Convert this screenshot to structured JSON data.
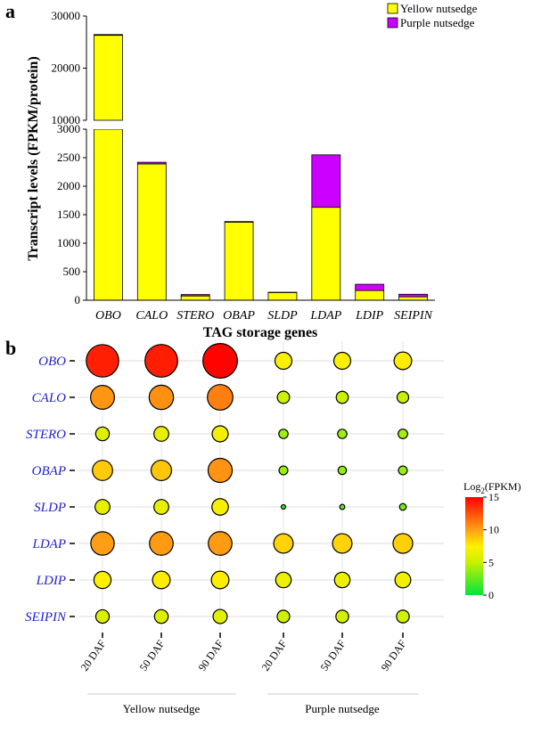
{
  "chart_data": [
    {
      "type": "bar",
      "stacked": true,
      "panel_label": "a",
      "categories": [
        "OBO",
        "CALO",
        "STERO",
        "OBAP",
        "SLDP",
        "LDAP",
        "LDIP",
        "SEIPIN"
      ],
      "series": [
        {
          "name": "Yellow nutsedge",
          "color": "#ffff00",
          "values": [
            26300,
            2390,
            75,
            1370,
            135,
            1630,
            170,
            60
          ]
        },
        {
          "name": "Purple nutsedge",
          "color": "#cc00ff",
          "values": [
            150,
            30,
            25,
            10,
            5,
            920,
            110,
            45
          ]
        }
      ],
      "xlabel": "TAG storage genes",
      "ylabel": "Transcript levels (FPKM/protein)",
      "axis_break": {
        "lower": [
          0,
          3000
        ],
        "upper": [
          10000,
          30000
        ]
      },
      "yticks_lower": [
        "0",
        "500",
        "1000",
        "1500",
        "2000",
        "2500",
        "3000"
      ],
      "yticks_upper": [
        "10000",
        "20000",
        "30000"
      ],
      "legend_position": "top-right"
    },
    {
      "type": "scatter",
      "subtype": "bubble",
      "panel_label": "b",
      "genes": [
        "OBO",
        "CALO",
        "STERO",
        "OBAP",
        "SLDP",
        "LDAP",
        "LDIP",
        "SEIPIN"
      ],
      "x": [
        "20 DAF",
        "50 DAF",
        "90 DAF",
        "20 DAF",
        "50 DAF",
        "90 DAF"
      ],
      "groups": [
        "Yellow nutsedge",
        "Purple nutsedge"
      ],
      "log2_fpkm": [
        [
          14.0,
          14.1,
          14.9,
          7.3,
          7.3,
          7.6
        ],
        [
          10.3,
          10.5,
          11.0,
          5.3,
          5.2,
          5.0
        ],
        [
          5.9,
          6.4,
          6.9,
          4.0,
          4.0,
          4.1
        ],
        [
          8.7,
          8.8,
          10.4,
          3.8,
          3.6,
          3.8
        ],
        [
          6.4,
          6.4,
          7.1,
          1.2,
          2.2,
          2.9
        ],
        [
          10.1,
          10.2,
          10.2,
          8.4,
          8.4,
          8.5
        ],
        [
          7.4,
          7.6,
          7.6,
          6.7,
          6.7,
          6.8
        ],
        [
          5.8,
          5.9,
          6.1,
          5.4,
          5.5,
          5.5
        ]
      ],
      "colorbar": {
        "title": "Log",
        "title_sub": "2",
        "title_tail": "(FPKM)",
        "min": 0,
        "max": 15,
        "ticks": [
          "0",
          "5",
          "10",
          "15"
        ]
      }
    }
  ]
}
